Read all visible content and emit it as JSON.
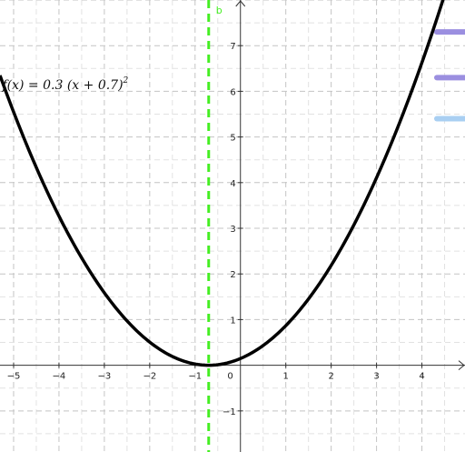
{
  "chart_data": {
    "type": "line",
    "title": "",
    "xlabel": "",
    "ylabel": "",
    "xlim": [
      -5.3,
      4.95
    ],
    "ylim": [
      -1.9,
      8.0
    ],
    "grid": true,
    "x_ticks": [
      -5,
      -4,
      -3,
      -2,
      -1,
      1,
      2,
      3,
      4
    ],
    "y_ticks": [
      -1,
      1,
      2,
      3,
      4,
      5,
      6,
      7
    ],
    "origin_label": "0",
    "function": {
      "label_parts": [
        "f(x) = 0.3 (x + 0.7)",
        "2"
      ],
      "a": 0.3,
      "h": -0.7,
      "k": 0,
      "color": "#000000"
    },
    "vertical_line": {
      "name": "b",
      "x": -0.7,
      "color": "#44ee22"
    },
    "slider_swatches": [
      {
        "color": "#9b8fe0",
        "y": 7.3
      },
      {
        "color": "#9b8fe0",
        "y": 6.3
      },
      {
        "color": "#a9cff2",
        "y": 5.4
      }
    ]
  }
}
